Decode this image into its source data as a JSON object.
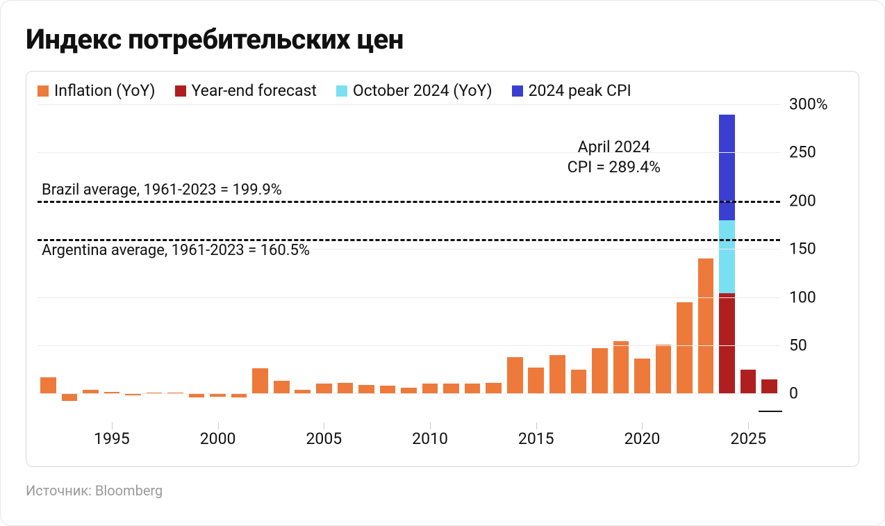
{
  "title": "Индекс потребительских цен",
  "source": "Источник: Bloomberg",
  "legend": [
    {
      "label": "Inflation (YoY)",
      "color": "#ed7a3b"
    },
    {
      "label": "Year-end forecast",
      "color": "#b01f1f"
    },
    {
      "label": "October 2024 (YoY)",
      "color": "#7bdff2"
    },
    {
      "label": "2024 peak CPI",
      "color": "#3a3fd1"
    }
  ],
  "chart": {
    "type": "bar",
    "ylim": [
      -30,
      300
    ],
    "y_zero": 0,
    "y_ticks": [
      0,
      50,
      100,
      150,
      200,
      250,
      300
    ],
    "y_tick_labels": [
      "0",
      "50",
      "100",
      "150",
      "200",
      "250",
      "300%"
    ],
    "x_start_year": 1992,
    "x_end_year": 2026,
    "x_tick_years": [
      1995,
      2000,
      2005,
      2010,
      2015,
      2020,
      2025
    ],
    "bar_width_ratio": 0.74,
    "background_color": "#ffffff",
    "grid_color": "#ececec",
    "axis_font_size": 23,
    "colors": {
      "inflation": "#ed7a3b",
      "forecast": "#b01f1f",
      "october": "#7bdff2",
      "peak": "#3a3fd1"
    },
    "reference_lines": [
      {
        "value": 199.9,
        "label": "Brazil average, 1961-2023 = 199.9%",
        "label_side": "above"
      },
      {
        "value": 160.5,
        "label": "Argentina average, 1961-2023 = 160.5%",
        "label_side": "below"
      }
    ],
    "annotation": {
      "text_line1": "April 2024",
      "text_line2": "CPI = 289.4%",
      "anchor_year": 2024,
      "y_value": 255
    },
    "bars": [
      {
        "year": 1992,
        "segments": [
          {
            "kind": "inflation",
            "from": 0,
            "to": 17
          }
        ]
      },
      {
        "year": 1993,
        "segments": [
          {
            "kind": "inflation",
            "from": -8,
            "to": 0
          }
        ]
      },
      {
        "year": 1994,
        "segments": [
          {
            "kind": "inflation",
            "from": 0,
            "to": 4
          }
        ]
      },
      {
        "year": 1995,
        "segments": [
          {
            "kind": "inflation",
            "from": 0,
            "to": 2
          }
        ]
      },
      {
        "year": 1996,
        "segments": [
          {
            "kind": "inflation",
            "from": -2,
            "to": 0
          }
        ]
      },
      {
        "year": 1997,
        "segments": [
          {
            "kind": "inflation",
            "from": 0,
            "to": 1
          }
        ]
      },
      {
        "year": 1998,
        "segments": [
          {
            "kind": "inflation",
            "from": 0,
            "to": 1
          }
        ]
      },
      {
        "year": 1999,
        "segments": [
          {
            "kind": "inflation",
            "from": -4,
            "to": 0
          }
        ]
      },
      {
        "year": 2000,
        "segments": [
          {
            "kind": "inflation",
            "from": -3,
            "to": 0
          }
        ]
      },
      {
        "year": 2001,
        "segments": [
          {
            "kind": "inflation",
            "from": -4,
            "to": 0
          }
        ]
      },
      {
        "year": 2002,
        "segments": [
          {
            "kind": "inflation",
            "from": 0,
            "to": 26
          }
        ]
      },
      {
        "year": 2003,
        "segments": [
          {
            "kind": "inflation",
            "from": 0,
            "to": 13
          }
        ]
      },
      {
        "year": 2004,
        "segments": [
          {
            "kind": "inflation",
            "from": 0,
            "to": 4
          }
        ]
      },
      {
        "year": 2005,
        "segments": [
          {
            "kind": "inflation",
            "from": 0,
            "to": 10
          }
        ]
      },
      {
        "year": 2006,
        "segments": [
          {
            "kind": "inflation",
            "from": 0,
            "to": 11
          }
        ]
      },
      {
        "year": 2007,
        "segments": [
          {
            "kind": "inflation",
            "from": 0,
            "to": 9
          }
        ]
      },
      {
        "year": 2008,
        "segments": [
          {
            "kind": "inflation",
            "from": 0,
            "to": 8
          }
        ]
      },
      {
        "year": 2009,
        "segments": [
          {
            "kind": "inflation",
            "from": 0,
            "to": 6
          }
        ]
      },
      {
        "year": 2010,
        "segments": [
          {
            "kind": "inflation",
            "from": 0,
            "to": 10
          }
        ]
      },
      {
        "year": 2011,
        "segments": [
          {
            "kind": "inflation",
            "from": 0,
            "to": 10
          }
        ]
      },
      {
        "year": 2012,
        "segments": [
          {
            "kind": "inflation",
            "from": 0,
            "to": 10
          }
        ]
      },
      {
        "year": 2013,
        "segments": [
          {
            "kind": "inflation",
            "from": 0,
            "to": 11
          }
        ]
      },
      {
        "year": 2014,
        "segments": [
          {
            "kind": "inflation",
            "from": 0,
            "to": 38
          }
        ]
      },
      {
        "year": 2015,
        "segments": [
          {
            "kind": "inflation",
            "from": 0,
            "to": 27
          }
        ]
      },
      {
        "year": 2016,
        "segments": [
          {
            "kind": "inflation",
            "from": 0,
            "to": 40
          }
        ]
      },
      {
        "year": 2017,
        "segments": [
          {
            "kind": "inflation",
            "from": 0,
            "to": 25
          }
        ]
      },
      {
        "year": 2018,
        "segments": [
          {
            "kind": "inflation",
            "from": 0,
            "to": 47
          }
        ]
      },
      {
        "year": 2019,
        "segments": [
          {
            "kind": "inflation",
            "from": 0,
            "to": 54
          }
        ]
      },
      {
        "year": 2020,
        "segments": [
          {
            "kind": "inflation",
            "from": 0,
            "to": 36
          }
        ]
      },
      {
        "year": 2021,
        "segments": [
          {
            "kind": "inflation",
            "from": 0,
            "to": 51
          }
        ]
      },
      {
        "year": 2022,
        "segments": [
          {
            "kind": "inflation",
            "from": 0,
            "to": 95
          }
        ]
      },
      {
        "year": 2023,
        "segments": [
          {
            "kind": "inflation",
            "from": 0,
            "to": 140
          }
        ]
      },
      {
        "year": 2024,
        "segments": [
          {
            "kind": "forecast",
            "from": 0,
            "to": 104
          },
          {
            "kind": "october",
            "from": 104,
            "to": 180
          },
          {
            "kind": "peak",
            "from": 180,
            "to": 289.4
          }
        ]
      },
      {
        "year": 2025,
        "segments": [
          {
            "kind": "forecast",
            "from": 0,
            "to": 25
          }
        ]
      },
      {
        "year": 2026,
        "segments": [
          {
            "kind": "forecast",
            "from": 0,
            "to": 15
          }
        ]
      }
    ]
  }
}
